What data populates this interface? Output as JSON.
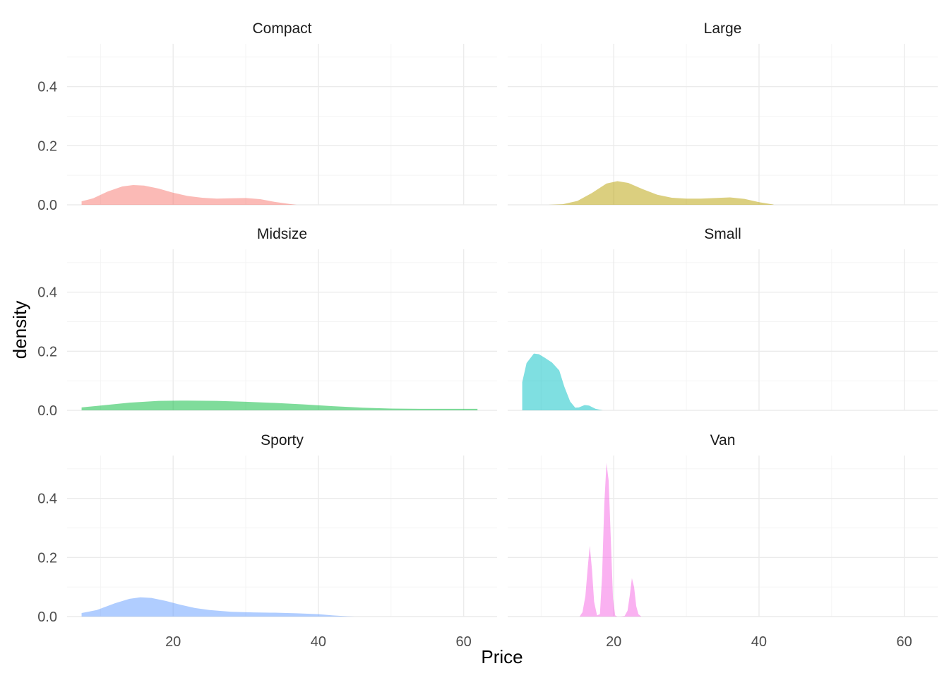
{
  "chart_data": {
    "type": "area",
    "layout": "facet_wrap",
    "facet_columns": 2,
    "xlabel": "Price",
    "ylabel": "density",
    "xlim": [
      5.4,
      64.6
    ],
    "ylim": [
      0,
      0.545
    ],
    "x_ticks": [
      20,
      40,
      60
    ],
    "x_tick_labels": [
      "20",
      "40",
      "60"
    ],
    "y_ticks": [
      0.0,
      0.2,
      0.4
    ],
    "y_tick_labels": [
      "0.0",
      "0.2",
      "0.4"
    ],
    "grid": true,
    "legend": "none",
    "panels": [
      {
        "name": "Compact",
        "color": "#F8766D",
        "x": [
          7.4,
          9,
          11,
          13,
          14.5,
          16,
          18,
          20,
          22,
          24,
          26,
          28,
          30,
          32,
          34,
          36,
          37
        ],
        "y": [
          0.012,
          0.022,
          0.045,
          0.062,
          0.067,
          0.065,
          0.055,
          0.041,
          0.03,
          0.024,
          0.021,
          0.022,
          0.023,
          0.019,
          0.01,
          0.003,
          0.0
        ]
      },
      {
        "name": "Large",
        "color": "#B79F00",
        "x": [
          11,
          13,
          15,
          17,
          19,
          20.5,
          22,
          24,
          26,
          28,
          30,
          32,
          34,
          36,
          38,
          40,
          42
        ],
        "y": [
          0.0,
          0.002,
          0.013,
          0.04,
          0.072,
          0.08,
          0.074,
          0.053,
          0.034,
          0.024,
          0.021,
          0.021,
          0.023,
          0.025,
          0.02,
          0.009,
          0.001
        ]
      },
      {
        "name": "Midsize",
        "color": "#00BA38",
        "x": [
          7.4,
          10,
          14,
          18,
          22,
          26,
          30,
          34,
          38,
          42,
          46,
          50,
          54,
          58,
          61.9
        ],
        "y": [
          0.01,
          0.016,
          0.026,
          0.032,
          0.033,
          0.032,
          0.029,
          0.025,
          0.02,
          0.014,
          0.009,
          0.006,
          0.005,
          0.005,
          0.005
        ]
      },
      {
        "name": "Small",
        "color": "#00BFC4",
        "x": [
          7.4,
          8,
          9,
          9.7,
          10.5,
          11.5,
          12.5,
          13.2,
          14,
          14.7,
          15.2,
          16,
          16.6,
          17.5,
          18.5
        ],
        "y": [
          0.095,
          0.16,
          0.192,
          0.19,
          0.178,
          0.162,
          0.135,
          0.08,
          0.03,
          0.009,
          0.01,
          0.018,
          0.016,
          0.005,
          0.0
        ]
      },
      {
        "name": "Sporty",
        "color": "#619CFF",
        "x": [
          7.4,
          9.5,
          12,
          14,
          15.5,
          17,
          19,
          21,
          23,
          25,
          28,
          31,
          34,
          37,
          40,
          42,
          44,
          45
        ],
        "y": [
          0.012,
          0.022,
          0.045,
          0.06,
          0.065,
          0.063,
          0.053,
          0.04,
          0.029,
          0.022,
          0.016,
          0.014,
          0.013,
          0.011,
          0.008,
          0.004,
          0.001,
          0.0
        ]
      },
      {
        "name": "Van",
        "color": "#F564E3",
        "x": [
          15.3,
          15.7,
          16.1,
          16.4,
          16.7,
          17.0,
          17.3,
          17.7,
          18.1,
          18.4,
          18.7,
          19.0,
          19.3,
          19.6,
          19.9,
          20.2,
          20.5,
          21.0,
          21.5,
          21.9,
          22.2,
          22.5,
          22.8,
          23.1,
          23.4,
          23.8
        ],
        "y": [
          0.0,
          0.015,
          0.07,
          0.16,
          0.24,
          0.16,
          0.05,
          0.004,
          0.008,
          0.14,
          0.38,
          0.52,
          0.46,
          0.26,
          0.06,
          0.004,
          0.0,
          0.0,
          0.002,
          0.02,
          0.07,
          0.13,
          0.1,
          0.035,
          0.008,
          0.0
        ]
      }
    ]
  }
}
